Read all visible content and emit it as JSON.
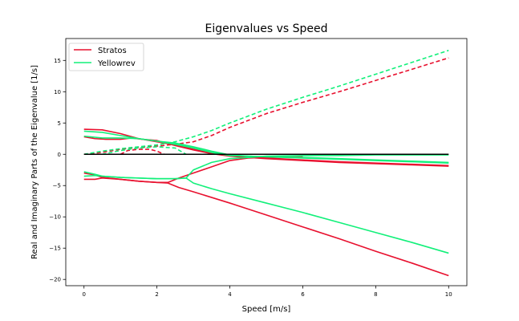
{
  "chart_data": {
    "type": "line",
    "title": "Eigenvalues vs Speed",
    "xlabel": "Speed [m/s]",
    "ylabel": "Real and Imaginary Parts of the Eigenvalue [1/s]",
    "xlim": [
      -0.5,
      10.5
    ],
    "ylim": [
      -21,
      18.5
    ],
    "xticks": [
      0,
      2,
      4,
      6,
      8,
      10
    ],
    "yticks": [
      -20,
      -15,
      -10,
      -5,
      0,
      5,
      10,
      15
    ],
    "xtick_labels": [
      "0",
      "2",
      "4",
      "6",
      "8",
      "10"
    ],
    "ytick_labels": [
      "−20",
      "−15",
      "−10",
      "−5",
      "0",
      "5",
      "10",
      "15"
    ],
    "grid": false,
    "legend_position": "top-left",
    "legend": [
      {
        "label": "Stratos",
        "color": "#e8102e"
      },
      {
        "label": "Yellowrev",
        "color": "#12f07a"
      }
    ],
    "reference_line": {
      "y": 0,
      "color": "#000000"
    },
    "series": [
      {
        "legend": "Stratos",
        "color": "#e8102e",
        "style": "solid",
        "x": [
          0,
          0.5,
          1,
          1.5,
          2,
          2.5,
          3,
          3.5,
          4,
          4.5,
          5,
          6,
          7,
          8,
          9,
          10
        ],
        "y": [
          4.0,
          3.9,
          3.3,
          2.5,
          2.0,
          1.5,
          0.8,
          0.2,
          -0.2,
          -0.5,
          -0.7,
          -1.0,
          -1.3,
          -1.5,
          -1.7,
          -1.9
        ]
      },
      {
        "legend": "Stratos",
        "color": "#e8102e",
        "style": "solid",
        "x": [
          0,
          0.3,
          0.6,
          1,
          1.3,
          1.6,
          2,
          2.5,
          3,
          3.5,
          4,
          4.5,
          5,
          6,
          7,
          8,
          9,
          10
        ],
        "y": [
          2.8,
          2.5,
          2.4,
          2.4,
          2.6,
          2.4,
          2.2,
          1.4,
          0.7,
          0.1,
          -0.3,
          -0.5,
          -0.6,
          -0.9,
          -1.2,
          -1.4,
          -1.6,
          -1.8
        ]
      },
      {
        "legend": "Stratos",
        "color": "#e8102e",
        "style": "solid",
        "x": [
          0,
          0.3,
          0.5,
          1,
          1.5,
          2,
          2.3,
          2.6,
          3,
          3.5,
          4,
          4.5,
          5,
          6
        ],
        "y": [
          -4.0,
          -4.0,
          -3.8,
          -4.0,
          -4.3,
          -4.5,
          -4.5,
          -3.8,
          -3.0,
          -2.0,
          -1.0,
          -0.6,
          -0.5,
          -0.4
        ]
      },
      {
        "legend": "Stratos",
        "color": "#e8102e",
        "style": "solid",
        "x": [
          0,
          0.3,
          0.5,
          1,
          1.5,
          2,
          2.3,
          2.6,
          3,
          4,
          5,
          6,
          7,
          8,
          9,
          10
        ],
        "y": [
          -3.0,
          -3.3,
          -3.7,
          -4.0,
          -4.3,
          -4.5,
          -4.6,
          -5.3,
          -6.0,
          -7.8,
          -9.7,
          -11.6,
          -13.5,
          -15.5,
          -17.4,
          -19.4
        ]
      },
      {
        "legend": "Stratos",
        "color": "#e8102e",
        "style": "dashed",
        "x": [
          0,
          0.5,
          1,
          1.5,
          2,
          2.5,
          3,
          3.5,
          4,
          5,
          6,
          7,
          8,
          9,
          10
        ],
        "y": [
          0.0,
          0.3,
          0.8,
          1.1,
          1.3,
          1.6,
          2.0,
          3.0,
          4.3,
          6.5,
          8.3,
          10.0,
          11.8,
          13.6,
          15.4
        ]
      },
      {
        "legend": "Stratos",
        "color": "#e8102e",
        "style": "dashed",
        "x": [
          1.0,
          1.2,
          1.5,
          1.8,
          2.0,
          2.2
        ],
        "y": [
          0.0,
          0.6,
          0.8,
          0.8,
          0.5,
          0.0
        ]
      },
      {
        "legend": "Yellowrev",
        "color": "#12f07a",
        "style": "solid",
        "x": [
          0,
          0.5,
          1,
          1.5,
          2,
          2.5,
          3,
          3.5,
          4,
          4.5,
          5,
          6,
          7,
          8,
          9,
          10
        ],
        "y": [
          3.7,
          3.5,
          3.0,
          2.5,
          2.1,
          1.8,
          1.2,
          0.5,
          -0.1,
          -0.3,
          -0.4,
          -0.6,
          -0.8,
          -1.0,
          -1.2,
          -1.4
        ]
      },
      {
        "legend": "Yellowrev",
        "color": "#12f07a",
        "style": "solid",
        "x": [
          0,
          0.5,
          1,
          1.5,
          2,
          2.5,
          3,
          3.5,
          4,
          4.5,
          5,
          6,
          7,
          8,
          9,
          10
        ],
        "y": [
          2.9,
          2.6,
          2.6,
          2.5,
          2.1,
          1.6,
          1.0,
          0.3,
          -0.2,
          -0.3,
          -0.4,
          -0.5,
          -0.7,
          -0.9,
          -1.1,
          -1.3
        ]
      },
      {
        "legend": "Yellowrev",
        "color": "#12f07a",
        "style": "solid",
        "x": [
          0,
          0.3,
          0.5,
          1,
          1.5,
          2,
          2.5,
          2.8,
          3.0,
          3.5,
          4,
          4.5,
          5,
          6,
          7,
          8,
          9,
          10
        ],
        "y": [
          -2.8,
          -3.2,
          -3.5,
          -3.7,
          -3.8,
          -3.9,
          -3.9,
          -3.8,
          -2.5,
          -1.3,
          -0.7,
          -0.5,
          -0.3,
          -0.2,
          -0.2,
          -0.1,
          -0.1,
          -0.1
        ]
      },
      {
        "legend": "Yellowrev",
        "color": "#12f07a",
        "style": "solid",
        "x": [
          0,
          0.3,
          0.5,
          1,
          1.5,
          2,
          2.5,
          2.8,
          3.0,
          3.5,
          4,
          5,
          6,
          7,
          8,
          9,
          10
        ],
        "y": [
          -3.5,
          -3.4,
          -3.5,
          -3.7,
          -3.8,
          -3.9,
          -3.9,
          -3.8,
          -4.6,
          -5.5,
          -6.3,
          -7.8,
          -9.3,
          -10.9,
          -12.5,
          -14.1,
          -15.8
        ]
      },
      {
        "legend": "Yellowrev",
        "color": "#12f07a",
        "style": "dashed",
        "x": [
          0,
          0.5,
          1,
          1.5,
          2,
          2.5,
          3,
          3.5,
          4,
          5,
          6,
          7,
          8,
          9,
          10
        ],
        "y": [
          0.0,
          0.5,
          0.9,
          1.2,
          1.5,
          2.0,
          2.8,
          3.8,
          5.0,
          7.2,
          9.1,
          10.9,
          12.8,
          14.7,
          16.6
        ]
      },
      {
        "legend": "Yellowrev",
        "color": "#12f07a",
        "style": "dashed",
        "x": [
          0.5,
          1.0,
          1.5,
          2.0,
          2.5,
          2.8
        ],
        "y": [
          0.0,
          0.6,
          1.0,
          1.2,
          1.0,
          0.0
        ]
      }
    ]
  }
}
